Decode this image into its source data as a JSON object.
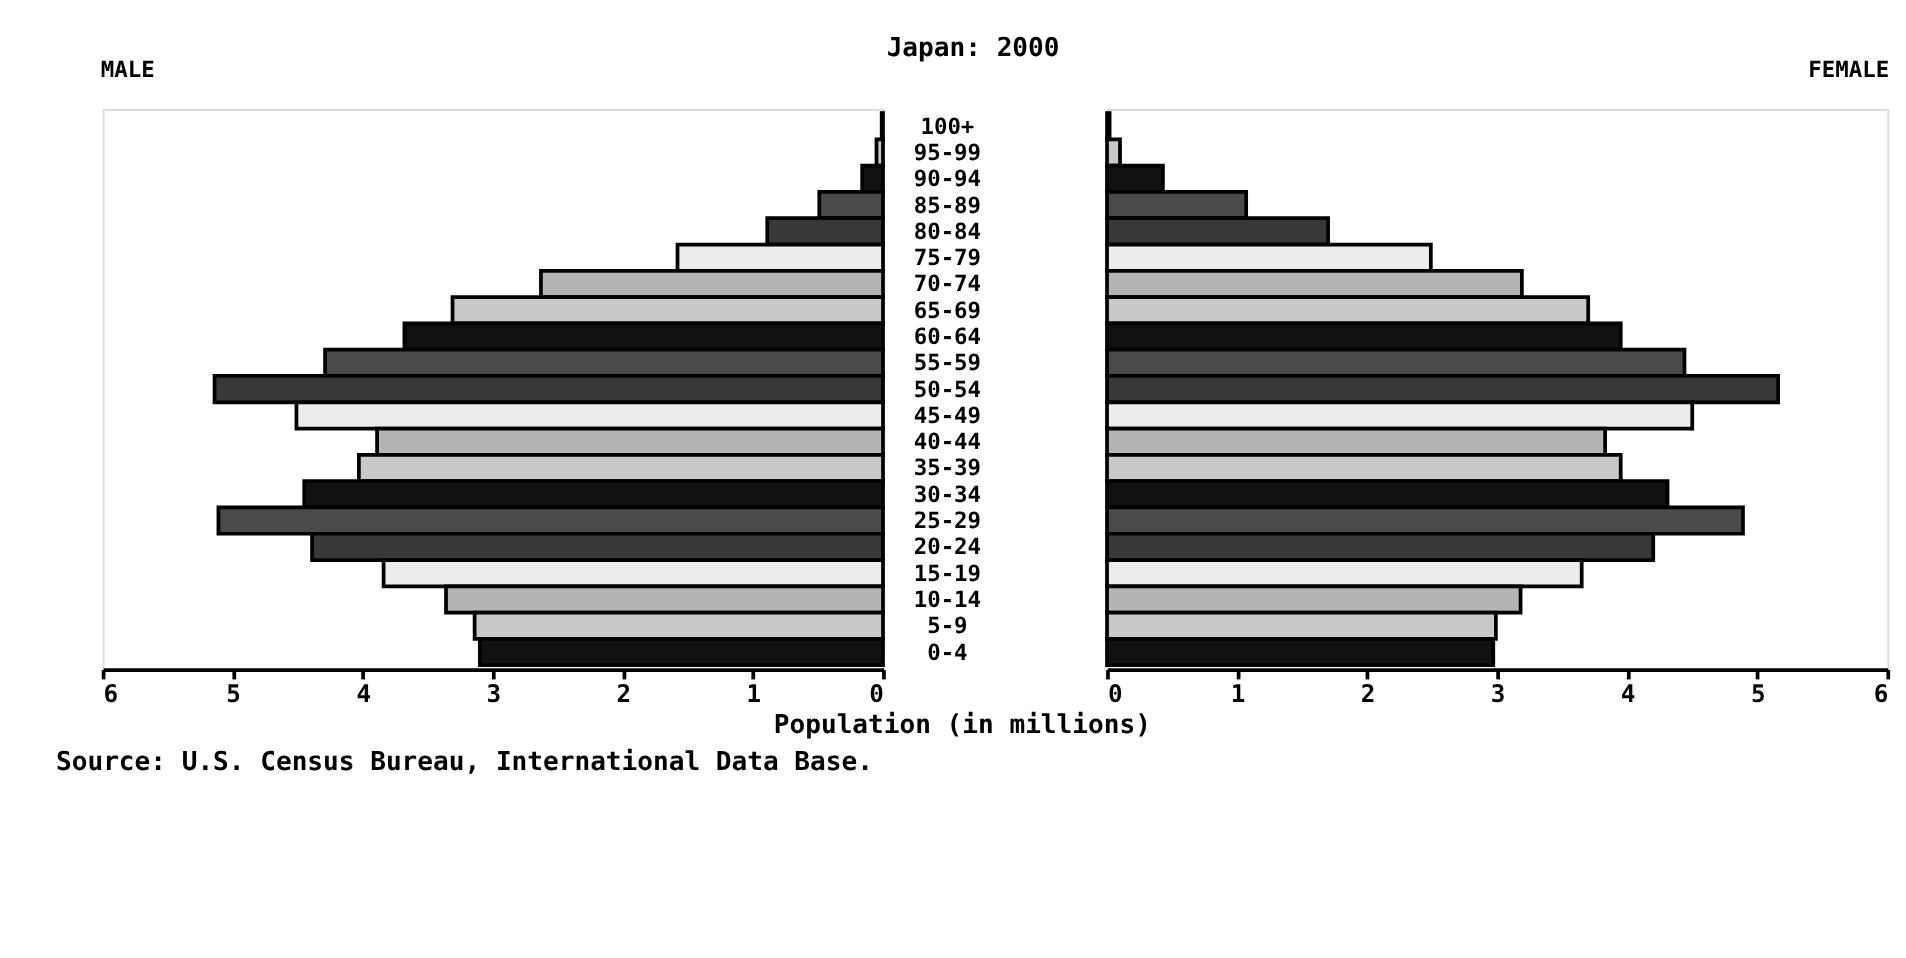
{
  "chart_data": [
    {
      "type": "bar",
      "orientation": "horizontal",
      "title": "Japan: 2000",
      "subtitle": "MALE",
      "xlabel": "Population (in millions)",
      "annotations": [
        "Source: U.S. Census Bureau, International Data Base."
      ],
      "grid": false,
      "categories": [
        "100+",
        "95-99",
        "90-94",
        "85-89",
        "80-84",
        "75-79",
        "70-74",
        "65-69",
        "60-64",
        "55-59",
        "50-54",
        "45-49",
        "40-44",
        "35-39",
        "30-34",
        "25-29",
        "20-24",
        "15-19",
        "10-14",
        "5-9",
        "0-4"
      ],
      "values": [
        0.01,
        0.05,
        0.16,
        0.49,
        0.89,
        1.58,
        2.63,
        3.31,
        3.68,
        4.29,
        5.14,
        4.51,
        3.89,
        4.03,
        4.45,
        5.11,
        4.39,
        3.84,
        3.36,
        3.14,
        3.1
      ],
      "colors": [
        "#b4b4b4",
        "#c8c8c8",
        "#111111",
        "#4a4a4a",
        "#383838",
        "#ececec",
        "#b4b4b4",
        "#c8c8c8",
        "#111111",
        "#4a4a4a",
        "#383838",
        "#ececec",
        "#b4b4b4",
        "#c8c8c8",
        "#111111",
        "#4a4a4a",
        "#383838",
        "#ececec",
        "#b4b4b4",
        "#c8c8c8",
        "#111111"
      ],
      "xlim": [
        6,
        0
      ],
      "xticks": [
        6,
        5,
        4,
        3,
        2,
        1,
        0
      ]
    },
    {
      "type": "bar",
      "orientation": "horizontal",
      "subtitle": "FEMALE",
      "grid": false,
      "tick_labels": "x",
      "categories": [
        null,
        null,
        null,
        null,
        null,
        null,
        null,
        null,
        null,
        null,
        null,
        null,
        null,
        null,
        null,
        null,
        null,
        null,
        null,
        null,
        null
      ],
      "values": [
        0.02,
        0.1,
        0.43,
        1.07,
        1.7,
        2.49,
        3.19,
        3.7,
        3.95,
        4.44,
        5.16,
        4.5,
        3.83,
        3.95,
        4.31,
        4.89,
        4.2,
        3.65,
        3.18,
        2.99,
        2.97
      ],
      "colors": [
        "#b4b4b4",
        "#c8c8c8",
        "#111111",
        "#4a4a4a",
        "#383838",
        "#ececec",
        "#b4b4b4",
        "#c8c8c8",
        "#111111",
        "#4a4a4a",
        "#383838",
        "#ececec",
        "#b4b4b4",
        "#c8c8c8",
        "#111111",
        "#4a4a4a",
        "#383838",
        "#ececec",
        "#b4b4b4",
        "#c8c8c8",
        "#111111"
      ],
      "xlim": [
        0,
        6
      ],
      "xticks": [
        0,
        1,
        2,
        3,
        4,
        5,
        6
      ]
    }
  ]
}
